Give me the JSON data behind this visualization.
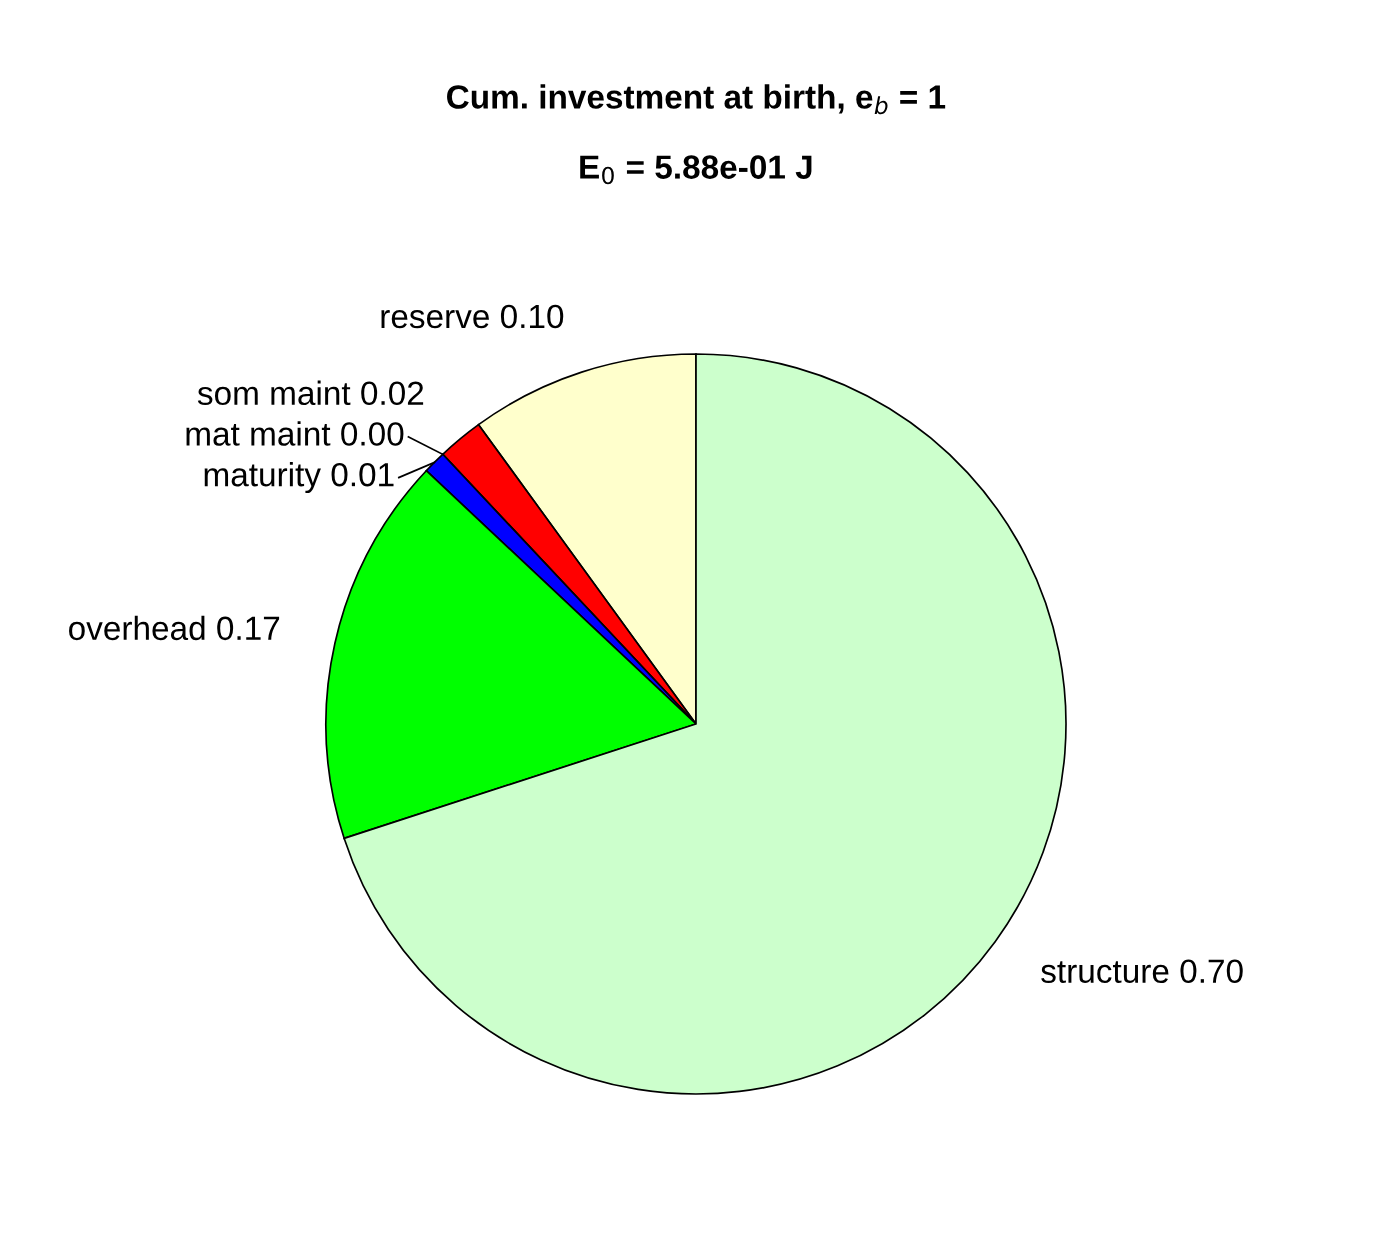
{
  "chart_data": {
    "type": "pie",
    "title": "Cum. investment at birth, e$_{b}$ = 1",
    "subtitle": "E$_{0}$ = 5.88e-01 J",
    "categories": [
      "reserve",
      "som maint",
      "mat maint",
      "maturity",
      "overhead",
      "structure"
    ],
    "values": [
      0.1,
      0.02,
      0.0,
      0.01,
      0.17,
      0.7
    ],
    "value_labels": [
      "0.10",
      "0.02",
      "0.00",
      "0.01",
      "0.17",
      "0.70"
    ],
    "colors": [
      "#ffffcc",
      "#ff0000",
      "#ff00ff",
      "#0000ff",
      "#00ff00",
      "#ccffcc"
    ],
    "legend": false
  }
}
